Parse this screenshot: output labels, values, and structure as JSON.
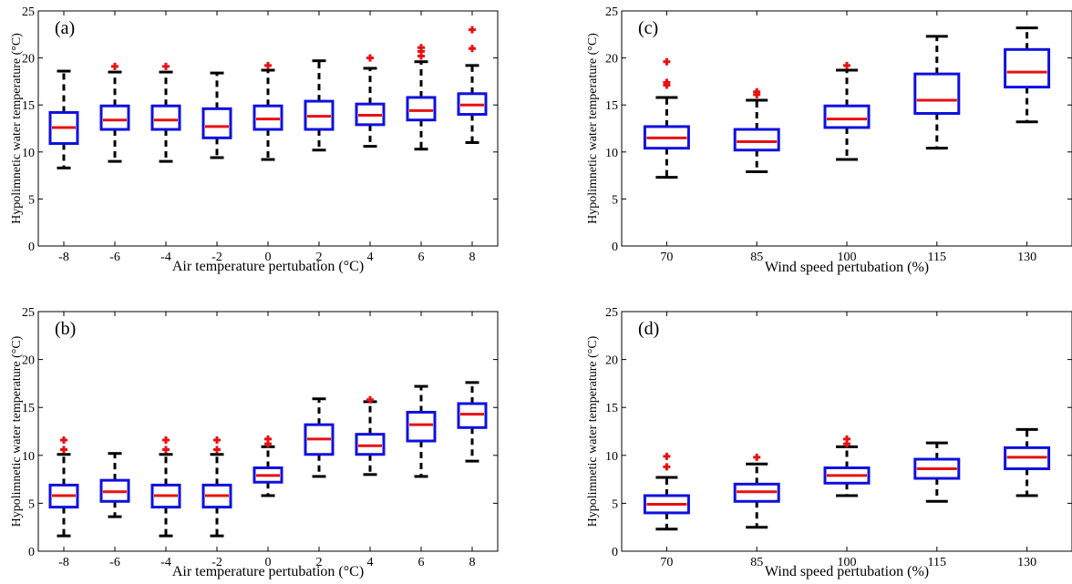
{
  "colors": {
    "box": "#1010e0",
    "median": "#e81010",
    "outlier": "#e81010",
    "whisker": "#000000",
    "frame": "#000000"
  },
  "chart_data": [
    {
      "panel": "(a)",
      "type": "box",
      "xlabel": "Air temperature pertubation (°C)",
      "ylabel": "Hypolimnetic water temperature (°C)",
      "categories": [
        "-8",
        "-6",
        "-4",
        "-2",
        "0",
        "2",
        "4",
        "6",
        "8"
      ],
      "ylim": [
        0,
        25
      ],
      "yticks": [
        0,
        5,
        10,
        15,
        20,
        25
      ],
      "boxes": [
        {
          "min": 8.3,
          "q1": 10.9,
          "median": 12.6,
          "q3": 14.2,
          "max": 18.6,
          "outliers": []
        },
        {
          "min": 9.0,
          "q1": 12.4,
          "median": 13.4,
          "q3": 14.9,
          "max": 18.5,
          "outliers": [
            19.1
          ]
        },
        {
          "min": 9.0,
          "q1": 12.4,
          "median": 13.4,
          "q3": 14.9,
          "max": 18.5,
          "outliers": [
            19.1
          ]
        },
        {
          "min": 9.4,
          "q1": 11.5,
          "median": 12.7,
          "q3": 14.6,
          "max": 18.4,
          "outliers": []
        },
        {
          "min": 9.2,
          "q1": 12.4,
          "median": 13.5,
          "q3": 14.9,
          "max": 18.7,
          "outliers": [
            19.2
          ]
        },
        {
          "min": 10.2,
          "q1": 12.4,
          "median": 13.8,
          "q3": 15.4,
          "max": 19.7,
          "outliers": []
        },
        {
          "min": 10.6,
          "q1": 12.9,
          "median": 13.9,
          "q3": 15.1,
          "max": 18.9,
          "outliers": [
            20.0
          ]
        },
        {
          "min": 10.3,
          "q1": 13.4,
          "median": 14.4,
          "q3": 15.8,
          "max": 19.6,
          "outliers": [
            20.2,
            20.7,
            21.1
          ]
        },
        {
          "min": 11.0,
          "q1": 14.0,
          "median": 15.0,
          "q3": 16.2,
          "max": 19.2,
          "outliers": [
            21.0,
            23.0
          ]
        }
      ]
    },
    {
      "panel": "(b)",
      "type": "box",
      "xlabel": "Air temperature pertubation (°C)",
      "ylabel": "Hypolimnetic water temperature (°C)",
      "categories": [
        "-8",
        "-6",
        "-4",
        "-2",
        "0",
        "2",
        "4",
        "6",
        "8"
      ],
      "ylim": [
        0,
        25
      ],
      "yticks": [
        0,
        5,
        10,
        15,
        20,
        25
      ],
      "boxes": [
        {
          "min": 1.6,
          "q1": 4.6,
          "median": 5.8,
          "q3": 6.9,
          "max": 10.1,
          "outliers": [
            10.6,
            11.6
          ]
        },
        {
          "min": 3.6,
          "q1": 5.2,
          "median": 6.2,
          "q3": 7.4,
          "max": 10.2,
          "outliers": []
        },
        {
          "min": 1.6,
          "q1": 4.6,
          "median": 5.8,
          "q3": 6.9,
          "max": 10.1,
          "outliers": [
            10.6,
            11.6
          ]
        },
        {
          "min": 1.6,
          "q1": 4.6,
          "median": 5.8,
          "q3": 6.9,
          "max": 10.1,
          "outliers": [
            10.6,
            11.6
          ]
        },
        {
          "min": 5.8,
          "q1": 7.2,
          "median": 7.9,
          "q3": 8.7,
          "max": 10.9,
          "outliers": [
            11.2,
            11.7
          ]
        },
        {
          "min": 7.8,
          "q1": 10.1,
          "median": 11.7,
          "q3": 13.2,
          "max": 15.9,
          "outliers": []
        },
        {
          "min": 8.0,
          "q1": 10.1,
          "median": 11.0,
          "q3": 12.2,
          "max": 15.6,
          "outliers": [
            15.8
          ]
        },
        {
          "min": 7.8,
          "q1": 11.5,
          "median": 13.2,
          "q3": 14.5,
          "max": 17.2,
          "outliers": []
        },
        {
          "min": 9.4,
          "q1": 12.9,
          "median": 14.3,
          "q3": 15.4,
          "max": 17.6,
          "outliers": []
        }
      ]
    },
    {
      "panel": "(c)",
      "type": "box",
      "xlabel": "Wind speed pertubation (%)",
      "ylabel": "Hypolimnetic water temperature (°C)",
      "categories": [
        "70",
        "85",
        "100",
        "115",
        "130"
      ],
      "ylim": [
        0,
        25
      ],
      "yticks": [
        0,
        5,
        10,
        15,
        20,
        25
      ],
      "boxes": [
        {
          "min": 7.3,
          "q1": 10.4,
          "median": 11.5,
          "q3": 12.7,
          "max": 15.8,
          "outliers": [
            17.1,
            17.4,
            19.6
          ]
        },
        {
          "min": 7.9,
          "q1": 10.2,
          "median": 11.1,
          "q3": 12.4,
          "max": 15.5,
          "outliers": [
            16.1,
            16.4
          ]
        },
        {
          "min": 9.2,
          "q1": 12.6,
          "median": 13.5,
          "q3": 14.9,
          "max": 18.7,
          "outliers": [
            19.2
          ]
        },
        {
          "min": 10.4,
          "q1": 14.1,
          "median": 15.5,
          "q3": 18.3,
          "max": 22.3,
          "outliers": []
        },
        {
          "min": 13.2,
          "q1": 16.9,
          "median": 18.5,
          "q3": 20.9,
          "max": 23.2,
          "outliers": []
        }
      ]
    },
    {
      "panel": "(d)",
      "type": "box",
      "xlabel": "Wind speed pertubation (%)",
      "ylabel": "Hypolimnetic water temperature (°C)",
      "categories": [
        "70",
        "85",
        "100",
        "115",
        "130"
      ],
      "ylim": [
        0,
        25
      ],
      "yticks": [
        0,
        5,
        10,
        15,
        20,
        25
      ],
      "boxes": [
        {
          "min": 2.3,
          "q1": 4.0,
          "median": 4.9,
          "q3": 5.8,
          "max": 7.7,
          "outliers": [
            8.8,
            9.9
          ]
        },
        {
          "min": 2.5,
          "q1": 5.2,
          "median": 6.2,
          "q3": 7.0,
          "max": 9.1,
          "outliers": [
            9.8
          ]
        },
        {
          "min": 5.8,
          "q1": 7.1,
          "median": 7.9,
          "q3": 8.7,
          "max": 10.9,
          "outliers": [
            11.2,
            11.7
          ]
        },
        {
          "min": 5.2,
          "q1": 7.6,
          "median": 8.6,
          "q3": 9.6,
          "max": 11.3,
          "outliers": []
        },
        {
          "min": 5.8,
          "q1": 8.6,
          "median": 9.8,
          "q3": 10.8,
          "max": 12.7,
          "outliers": []
        }
      ]
    }
  ]
}
